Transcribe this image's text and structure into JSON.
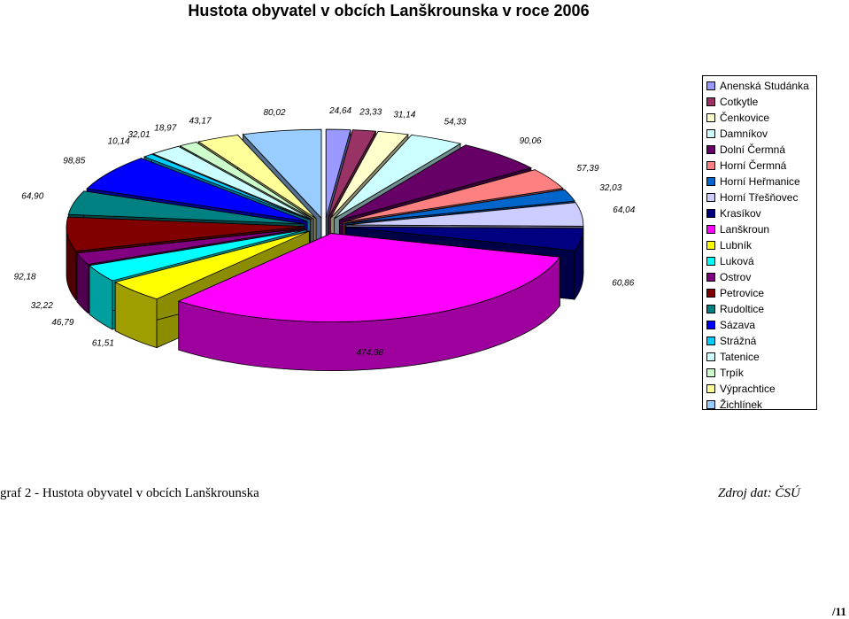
{
  "chart_data": {
    "type": "pie",
    "title": "Hustota obyvatel v obcích Lanškrounska v roce 2006",
    "style": "exploded 3D pie",
    "legend_position": "right",
    "categories": [
      "Anenská Studánka",
      "Cotkytle",
      "Čenkovice",
      "Damníkov",
      "Dolní Čermná",
      "Horní Čermná",
      "Horní Heřmanice",
      "Horní Třešňovec",
      "Krasíkov",
      "Lanškroun",
      "Lubník",
      "Luková",
      "Ostrov",
      "Petrovice",
      "Rudoltice",
      "Sázava",
      "Strážná",
      "Tatenice",
      "Trpík",
      "Výprachtice",
      "Žichlínek"
    ],
    "values": [
      24.64,
      23.33,
      31.14,
      54.33,
      90.06,
      57.39,
      32.03,
      64.04,
      60.86,
      474.98,
      61.51,
      46.79,
      32.22,
      92.18,
      64.9,
      98.85,
      10.14,
      32.01,
      18.97,
      43.17,
      80.02
    ],
    "value_labels": [
      "24,64",
      "23,33",
      "31,14",
      "54,33",
      "90,06",
      "57,39",
      "32,03",
      "64,04",
      "60,86",
      "474,98",
      "61,51",
      "46,79",
      "32,22",
      "92,18",
      "64,90",
      "98,85",
      "10,14",
      "32,01",
      "18,97",
      "43,17",
      "80,02"
    ],
    "colors": [
      "#9999FF",
      "#993366",
      "#FFFFCC",
      "#CCFFFF",
      "#660066",
      "#FF8080",
      "#0066CC",
      "#CCCCFF",
      "#000080",
      "#FF00FF",
      "#FFFF00",
      "#00FFFF",
      "#800080",
      "#800000",
      "#008080",
      "#0000FF",
      "#00CCFF",
      "#CCFFFF",
      "#CCFFCC",
      "#FFFF99",
      "#99CCFF"
    ]
  },
  "caption": "graf 2 - Hustota obyvatel v obcích Lanškrounska",
  "source": "Zdroj dat: ČSÚ",
  "page_number": "/11"
}
